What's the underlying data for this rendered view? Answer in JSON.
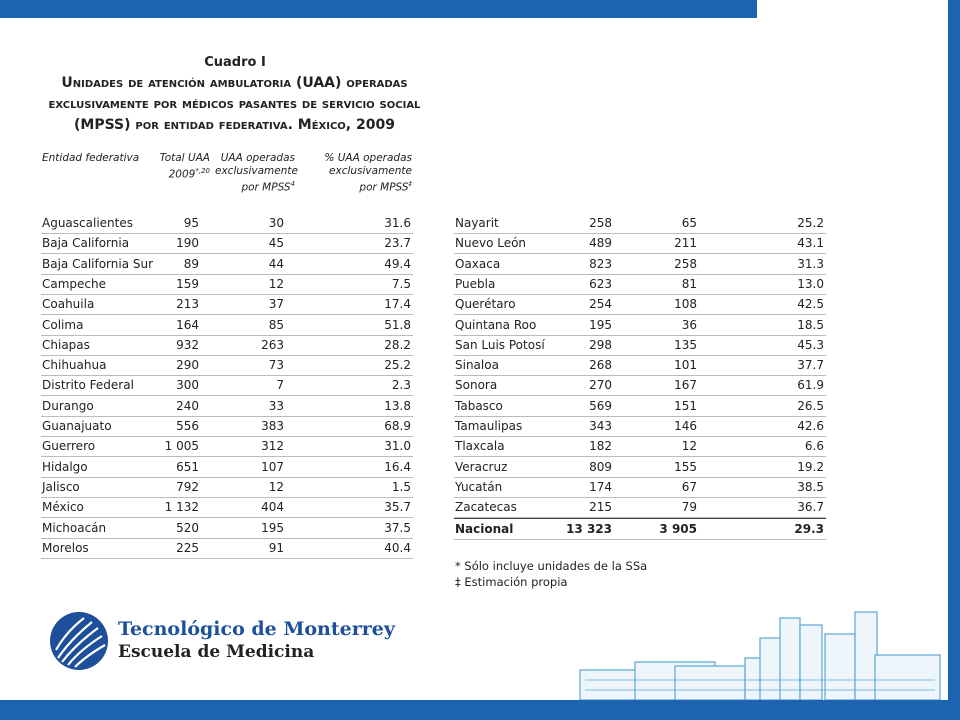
{
  "title": {
    "label": "Cuadro I",
    "text": "Unidades de atención ambulatoria (UAA) operadas exclusivamente por médicos pasantes de servicio social (MPSS) por entidad federativa. México, 2009"
  },
  "table": {
    "headers": [
      {
        "text": "Entidad federativa",
        "sup": ""
      },
      {
        "text": "Total UAA 2009",
        "sup": "*,20"
      },
      {
        "text": "UAA operadas exclusivamente por MPSS",
        "sup": "4"
      },
      {
        "text": "% UAA operadas exclusivamente por MPSS",
        "sup": "‡"
      }
    ],
    "left_rows": [
      [
        "Aguascalientes",
        "95",
        "30",
        "31.6"
      ],
      [
        "Baja California",
        "190",
        "45",
        "23.7"
      ],
      [
        "Baja California Sur",
        "89",
        "44",
        "49.4"
      ],
      [
        "Campeche",
        "159",
        "12",
        "7.5"
      ],
      [
        "Coahuila",
        "213",
        "37",
        "17.4"
      ],
      [
        "Colima",
        "164",
        "85",
        "51.8"
      ],
      [
        "Chiapas",
        "932",
        "263",
        "28.2"
      ],
      [
        "Chihuahua",
        "290",
        "73",
        "25.2"
      ],
      [
        "Distrito Federal",
        "300",
        "7",
        "2.3"
      ],
      [
        "Durango",
        "240",
        "33",
        "13.8"
      ],
      [
        "Guanajuato",
        "556",
        "383",
        "68.9"
      ],
      [
        "Guerrero",
        "1 005",
        "312",
        "31.0"
      ],
      [
        "Hidalgo",
        "651",
        "107",
        "16.4"
      ],
      [
        "Jalisco",
        "792",
        "12",
        "1.5"
      ],
      [
        "México",
        "1 132",
        "404",
        "35.7"
      ],
      [
        "Michoacán",
        "520",
        "195",
        "37.5"
      ],
      [
        "Morelos",
        "225",
        "91",
        "40.4"
      ]
    ],
    "right_rows": [
      [
        "Nayarit",
        "258",
        "65",
        "25.2"
      ],
      [
        "Nuevo León",
        "489",
        "211",
        "43.1"
      ],
      [
        "Oaxaca",
        "823",
        "258",
        "31.3"
      ],
      [
        "Puebla",
        "623",
        "81",
        "13.0"
      ],
      [
        "Querétaro",
        "254",
        "108",
        "42.5"
      ],
      [
        "Quintana Roo",
        "195",
        "36",
        "18.5"
      ],
      [
        "San Luis Potosí",
        "298",
        "135",
        "45.3"
      ],
      [
        "Sinaloa",
        "268",
        "101",
        "37.7"
      ],
      [
        "Sonora",
        "270",
        "167",
        "61.9"
      ],
      [
        "Tabasco",
        "569",
        "151",
        "26.5"
      ],
      [
        "Tamaulipas",
        "343",
        "146",
        "42.6"
      ],
      [
        "Tlaxcala",
        "182",
        "12",
        "6.6"
      ],
      [
        "Veracruz",
        "809",
        "155",
        "19.2"
      ],
      [
        "Yucatán",
        "174",
        "67",
        "38.5"
      ],
      [
        "Zacatecas",
        "215",
        "79",
        "36.7"
      ]
    ],
    "total_row": [
      "Nacional",
      "13 323",
      "3 905",
      "29.3"
    ],
    "footnotes": [
      "* Sólo incluye unidades de la SSa",
      "‡ Estimación propia"
    ]
  },
  "logo": {
    "line1": "Tecnológico de Monterrey",
    "line2": "Escuela de Medicina"
  }
}
